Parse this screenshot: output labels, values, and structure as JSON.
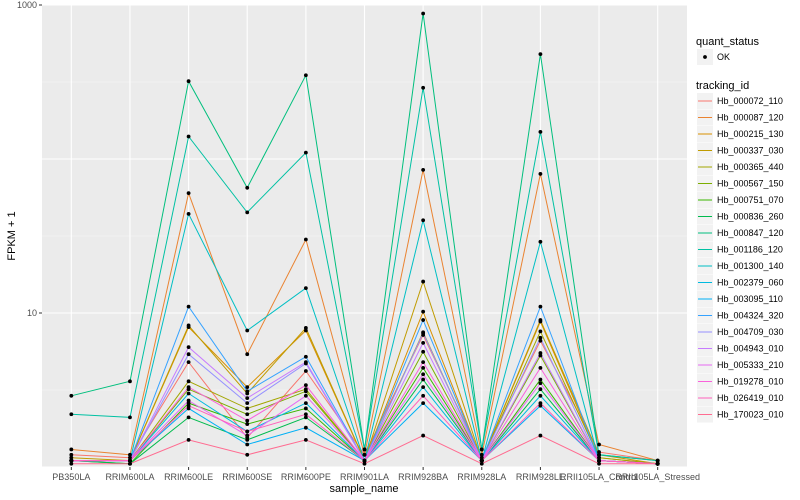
{
  "chart_data": {
    "type": "line",
    "xlabel": "sample_name",
    "ylabel": "FPKM + 1",
    "y_scale": "log10",
    "ylim": [
      1,
      1000
    ],
    "y_ticks": [
      10,
      1000
    ],
    "y_tick_labels": [
      "10",
      "1000"
    ],
    "grid": true,
    "point_colors": "#000000",
    "categories": [
      "PB350LA",
      "RRIM600LA",
      "RRIM600LE",
      "RRIM600SE",
      "RRIM600PE",
      "RRIM901LA",
      "RRIM928BA",
      "RRIM928LA",
      "RRIM928LE",
      "RRII105LA_Control",
      "RRII105LA_Stressed"
    ],
    "legend_position": "right",
    "legend_shape": {
      "title": "quant_status",
      "items": [
        "OK"
      ]
    },
    "legend_color": {
      "title": "tracking_id"
    },
    "series": [
      {
        "name": "Hb_000072_110",
        "color": "#F8766D",
        "values": [
          1.2,
          1.15,
          4.8,
          1.55,
          4.2,
          1.2,
          7.2,
          1.15,
          6.6,
          1.25,
          1.1
        ]
      },
      {
        "name": "Hb_000087_120",
        "color": "#EA8331",
        "values": [
          1.3,
          1.2,
          60,
          5.4,
          30,
          1.2,
          85,
          1.2,
          80,
          1.4,
          1.1
        ]
      },
      {
        "name": "Hb_000215_130",
        "color": "#D89000",
        "values": [
          1.1,
          1.1,
          8.1,
          3.3,
          7.7,
          1.1,
          10.2,
          1.1,
          8.8,
          1.15,
          1.05
        ]
      },
      {
        "name": "Hb_000337_030",
        "color": "#C09B00",
        "values": [
          1.15,
          1.1,
          8.3,
          3.0,
          8.0,
          1.1,
          16,
          1.1,
          9.0,
          1.2,
          1.05
        ]
      },
      {
        "name": "Hb_000365_440",
        "color": "#A3A500",
        "values": [
          1.1,
          1.1,
          3.6,
          2.4,
          3.2,
          1.1,
          7.5,
          1.1,
          7.6,
          1.15,
          1.05
        ]
      },
      {
        "name": "Hb_000567_150",
        "color": "#7CAE00",
        "values": [
          1.1,
          1.1,
          3.2,
          2.2,
          3.1,
          1.1,
          5.6,
          1.1,
          5.3,
          1.1,
          1.05
        ]
      },
      {
        "name": "Hb_000751_070",
        "color": "#39B600",
        "values": [
          1.1,
          1.05,
          2.6,
          1.9,
          2.4,
          1.1,
          4.4,
          1.1,
          3.7,
          1.1,
          1.05
        ]
      },
      {
        "name": "Hb_000836_260",
        "color": "#00BB4E",
        "values": [
          1.1,
          1.05,
          2.1,
          1.5,
          2.1,
          1.1,
          3.7,
          1.1,
          3.2,
          1.1,
          1.05
        ]
      },
      {
        "name": "Hb_000847_120",
        "color": "#00BF7D",
        "values": [
          2.9,
          3.6,
          320,
          65,
          350,
          1.3,
          880,
          1.3,
          480,
          1.2,
          1.1
        ]
      },
      {
        "name": "Hb_001186_120",
        "color": "#00C1A3",
        "values": [
          2.2,
          2.1,
          140,
          45,
          110,
          1.3,
          290,
          1.3,
          150,
          1.2,
          1.1
        ]
      },
      {
        "name": "Hb_001300_140",
        "color": "#00BFC4",
        "values": [
          1.1,
          1.1,
          44,
          7.7,
          14.5,
          1.1,
          40,
          1.1,
          29,
          1.1,
          1.05
        ]
      },
      {
        "name": "Hb_002379_060",
        "color": "#00BAE0",
        "values": [
          1.1,
          1.1,
          3.0,
          1.7,
          2.6,
          1.1,
          3.3,
          1.1,
          2.9,
          1.1,
          1.05
        ]
      },
      {
        "name": "Hb_003095_110",
        "color": "#00B0F6",
        "values": [
          1.1,
          1.1,
          2.4,
          1.4,
          1.8,
          1.1,
          2.6,
          1.1,
          2.5,
          1.1,
          1.05
        ]
      },
      {
        "name": "Hb_004324_320",
        "color": "#35A2FF",
        "values": [
          1.1,
          1.1,
          11,
          3.1,
          5.2,
          1.1,
          9.0,
          1.1,
          11,
          1.1,
          1.05
        ]
      },
      {
        "name": "Hb_004709_030",
        "color": "#9590FF",
        "values": [
          1.1,
          1.1,
          5.4,
          2.6,
          4.7,
          1.1,
          7.4,
          1.1,
          6.9,
          1.1,
          1.05
        ]
      },
      {
        "name": "Hb_004943_010",
        "color": "#C77CFF",
        "values": [
          1.1,
          1.1,
          6.0,
          2.8,
          4.8,
          1.1,
          6.4,
          1.1,
          5.5,
          1.1,
          1.05
        ]
      },
      {
        "name": "Hb_005333_210",
        "color": "#E76BF3",
        "values": [
          1.1,
          1.1,
          2.7,
          1.6,
          2.9,
          1.1,
          4.0,
          1.1,
          3.5,
          1.1,
          1.05
        ]
      },
      {
        "name": "Hb_019278_010",
        "color": "#FA62DB",
        "values": [
          1.1,
          1.1,
          3.3,
          2.0,
          3.4,
          1.1,
          4.8,
          1.1,
          4.4,
          1.1,
          1.05
        ]
      },
      {
        "name": "Hb_026419_010",
        "color": "#FF62BC",
        "values": [
          1.1,
          1.1,
          2.5,
          1.7,
          2.2,
          1.1,
          2.9,
          1.1,
          2.6,
          1.1,
          1.05
        ]
      },
      {
        "name": "Hb_170023_010",
        "color": "#FF6C91",
        "values": [
          1.05,
          1.05,
          1.5,
          1.2,
          1.5,
          1.05,
          1.6,
          1.05,
          1.6,
          1.05,
          1.05
        ]
      }
    ]
  }
}
